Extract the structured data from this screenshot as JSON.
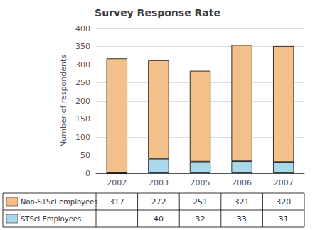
{
  "chart_data": {
    "type": "bar",
    "title": "Survey Response Rate",
    "ylabel": "Number of respondents",
    "categories": [
      "2002",
      "2003",
      "2005",
      "2006",
      "2007"
    ],
    "series": [
      {
        "name": "STScI Employees",
        "color": "#A8D8EA",
        "values": [
          0,
          40,
          32,
          33,
          31
        ],
        "value_labels": [
          null,
          "40",
          "32",
          "33",
          "31"
        ]
      },
      {
        "name": "Non-STScI employees",
        "color": "#F4C08A",
        "values": [
          317,
          272,
          251,
          321,
          320
        ]
      }
    ],
    "stacked": true,
    "ylim": [
      0,
      400
    ],
    "yticks": [
      0,
      50,
      100,
      150,
      200,
      250,
      300,
      350,
      400
    ],
    "grid": true
  }
}
